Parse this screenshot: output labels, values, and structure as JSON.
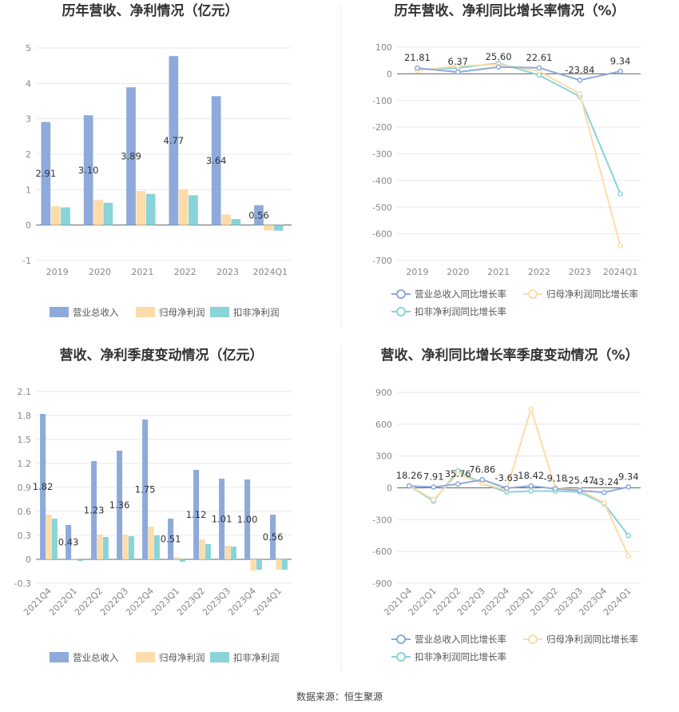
{
  "source_label": "数据来源：恒生聚源",
  "colors": {
    "revenue": "#8eaadb",
    "net_profit": "#fddcaa",
    "deducted": "#88d4d8",
    "grid": "#e8e8e8",
    "axis": "#666666"
  },
  "chart_data": [
    {
      "type": "bar",
      "title": "历年营收、净利情况（亿元）",
      "categories": [
        "2019",
        "2020",
        "2021",
        "2022",
        "2023",
        "2024Q1"
      ],
      "ylim": [
        -1,
        5
      ],
      "yticks": [
        "-1",
        "0",
        "1",
        "2",
        "3",
        "4",
        "5"
      ],
      "grid": true,
      "legend_position": "bottom",
      "series": [
        {
          "name": "营业总收入",
          "values": [
            2.91,
            3.1,
            3.89,
            4.77,
            3.64,
            0.56
          ],
          "labels": [
            "2.91",
            "3.10",
            "3.89",
            "4.77",
            "3.64",
            "0.56"
          ]
        },
        {
          "name": "归母净利润",
          "values": [
            0.53,
            0.71,
            0.96,
            1.01,
            0.3,
            -0.15
          ]
        },
        {
          "name": "扣非净利润",
          "values": [
            0.5,
            0.63,
            0.88,
            0.84,
            0.17,
            -0.16
          ]
        }
      ]
    },
    {
      "type": "line",
      "title": "历年营收、净利同比增长率情况（%）",
      "categories": [
        "2019",
        "2020",
        "2021",
        "2022",
        "2023",
        "2024Q1"
      ],
      "ylim": [
        -700,
        100
      ],
      "yticks": [
        "-700",
        "-600",
        "-500",
        "-400",
        "-300",
        "-200",
        "-100",
        "0",
        "100"
      ],
      "grid": true,
      "legend_position": "bottom",
      "series": [
        {
          "name": "营业总收入同比增长率",
          "values": [
            21.81,
            6.37,
            25.6,
            22.61,
            -23.84,
            9.34
          ],
          "labels": [
            "21.81",
            "6.37",
            "25.60",
            "22.61",
            "-23.84",
            "9.34"
          ]
        },
        {
          "name": "归母净利润同比增长率",
          "values": [
            12,
            30,
            35,
            10,
            -75,
            -645
          ]
        },
        {
          "name": "扣非净利润同比增长率",
          "values": [
            15,
            22,
            40,
            -5,
            -85,
            -450
          ]
        }
      ]
    },
    {
      "type": "bar",
      "title": "营收、净利季度变动情况（亿元）",
      "categories": [
        "2021Q4",
        "2022Q1",
        "2022Q2",
        "2022Q3",
        "2022Q4",
        "2023Q1",
        "2023Q2",
        "2023Q3",
        "2023Q4",
        "2024Q1"
      ],
      "ylim": [
        -0.3,
        2.1
      ],
      "yticks": [
        "-0.3",
        "0",
        "0.3",
        "0.6",
        "0.9",
        "1.2",
        "1.5",
        "1.8",
        "2.1"
      ],
      "grid": true,
      "legend_position": "bottom",
      "series": [
        {
          "name": "营业总收入",
          "values": [
            1.82,
            0.43,
            1.23,
            1.36,
            1.75,
            0.51,
            1.12,
            1.01,
            1.0,
            0.56
          ],
          "labels": [
            "1.82",
            "0.43",
            "1.23",
            "1.36",
            "1.75",
            "0.51",
            "1.12",
            "1.01",
            "1.00",
            "0.56"
          ]
        },
        {
          "name": "归母净利润",
          "values": [
            0.56,
            0.01,
            0.31,
            0.31,
            0.41,
            0.03,
            0.25,
            0.17,
            -0.14,
            -0.13
          ]
        },
        {
          "name": "扣非净利润",
          "values": [
            0.51,
            -0.02,
            0.28,
            0.29,
            0.3,
            -0.03,
            0.19,
            0.16,
            -0.13,
            -0.13
          ]
        }
      ]
    },
    {
      "type": "line",
      "title": "营收、净利同比增长率季度变动情况（%）",
      "categories": [
        "2021Q4",
        "2022Q1",
        "2022Q2",
        "2022Q3",
        "2022Q4",
        "2023Q1",
        "2023Q2",
        "2023Q3",
        "2023Q4",
        "2024Q1"
      ],
      "ylim": [
        -900,
        900
      ],
      "yticks": [
        "-900",
        "-600",
        "-300",
        "0",
        "300",
        "600",
        "900"
      ],
      "grid": true,
      "legend_position": "bottom",
      "series": [
        {
          "name": "营业总收入同比增长率",
          "values": [
            18.26,
            7.91,
            35.76,
            76.86,
            -3.63,
            18.42,
            -9.18,
            -25.47,
            -43.24,
            9.34
          ],
          "labels": [
            "18.26",
            "7.91",
            "35.76",
            "76.86",
            "-3.63",
            "18.42",
            "-9.18",
            "-25.47",
            "-43.24",
            "9.34"
          ]
        },
        {
          "name": "归母净利润同比增长率",
          "values": [
            20,
            -110,
            130,
            40,
            -20,
            745,
            0,
            -20,
            -140,
            -640
          ]
        },
        {
          "name": "扣非净利润同比增长率",
          "values": [
            20,
            -125,
            160,
            40,
            -40,
            -30,
            -30,
            -40,
            -150,
            -450
          ]
        }
      ]
    }
  ]
}
